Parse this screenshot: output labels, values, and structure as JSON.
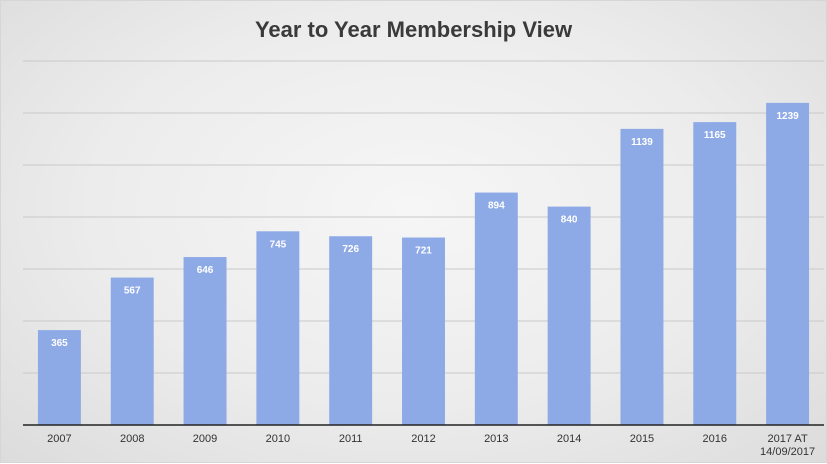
{
  "chart_data": {
    "type": "bar",
    "title": "Year to Year Membership View",
    "xlabel": "",
    "ylabel": "",
    "categories": [
      "2007",
      "2008",
      "2009",
      "2010",
      "2011",
      "2012",
      "2013",
      "2014",
      "2015",
      "2016",
      "2017 AT 14/09/2017"
    ],
    "values": [
      365,
      567,
      646,
      745,
      726,
      721,
      894,
      840,
      1139,
      1165,
      1239
    ],
    "ylim": [
      0,
      1400
    ],
    "grid": true,
    "legend": "none",
    "bar_color": "#8eaae6"
  }
}
